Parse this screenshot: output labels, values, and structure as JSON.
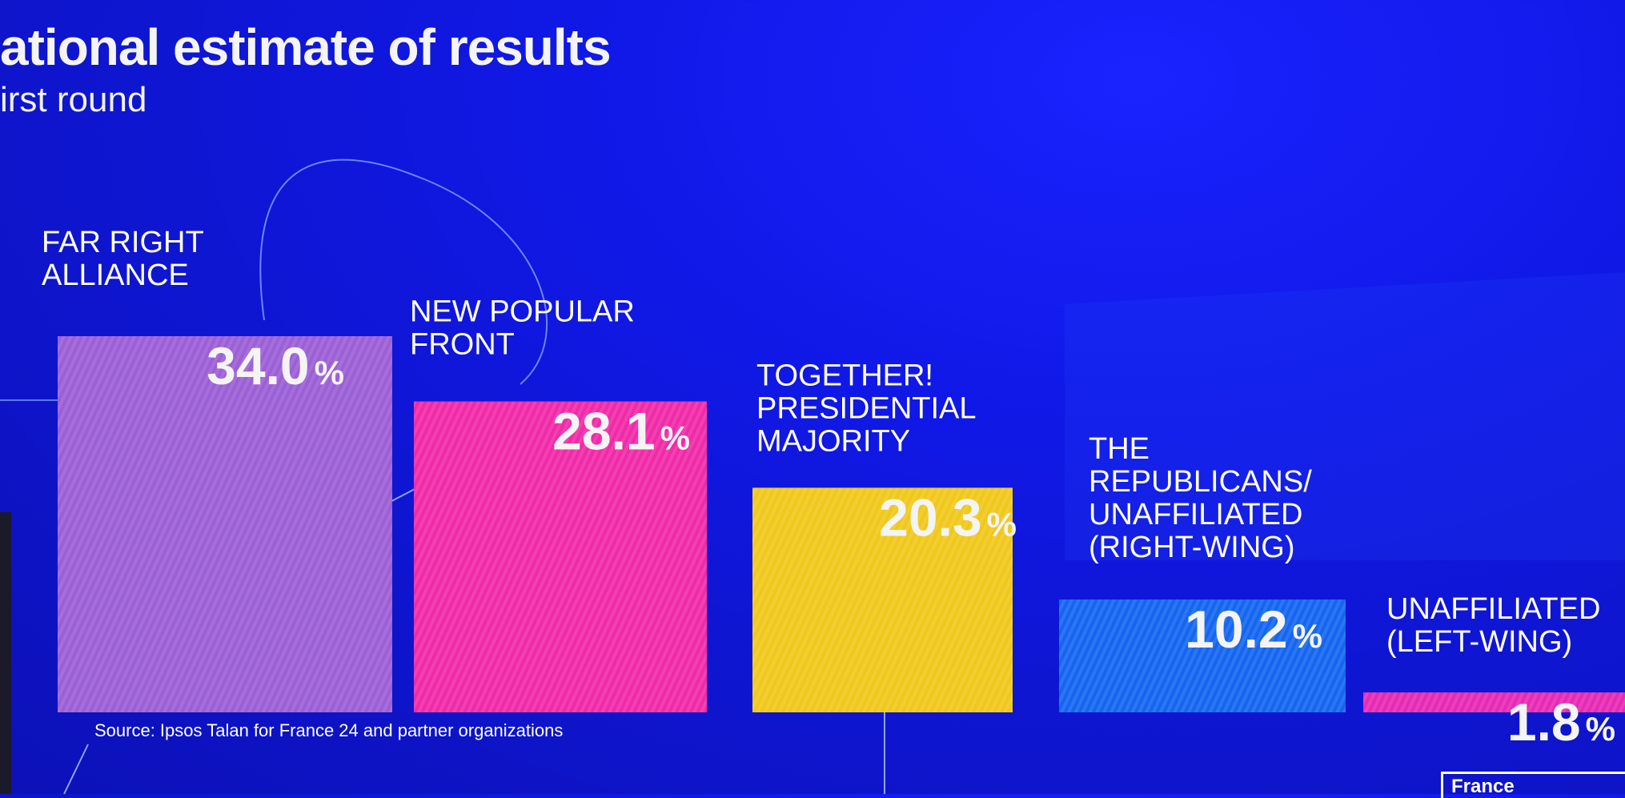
{
  "header": {
    "title": "ational estimate of results",
    "subtitle": "irst round"
  },
  "source": "Source: Ipsos Talan for France 24 and partner organizations",
  "logo_text": "France",
  "chart_data": {
    "type": "bar",
    "title": "ational estimate of results",
    "subtitle": "irst round",
    "categories": [
      [
        "FAR RIGHT",
        "ALLIANCE"
      ],
      [
        "NEW POPULAR",
        "FRONT"
      ],
      [
        "TOGETHER!",
        "PRESIDENTIAL",
        "MAJORITY"
      ],
      [
        "THE",
        "REPUBLICANS/",
        "UNAFFILIATED",
        "(RIGHT-WING)"
      ],
      [
        "UNAFFILIATED",
        "(LEFT-WING)"
      ]
    ],
    "values": [
      34.0,
      28.1,
      20.3,
      10.2,
      1.8
    ],
    "value_labels": [
      "34.0",
      "28.1",
      "20.3",
      "10.2",
      "1.8"
    ],
    "unit": "%",
    "colors": [
      "#9b5fd6",
      "#f02aa8",
      "#f0c81c",
      "#1466f0",
      "#e62ab4"
    ],
    "grid": false,
    "legend": "none",
    "xlabel": "",
    "ylabel": ""
  }
}
